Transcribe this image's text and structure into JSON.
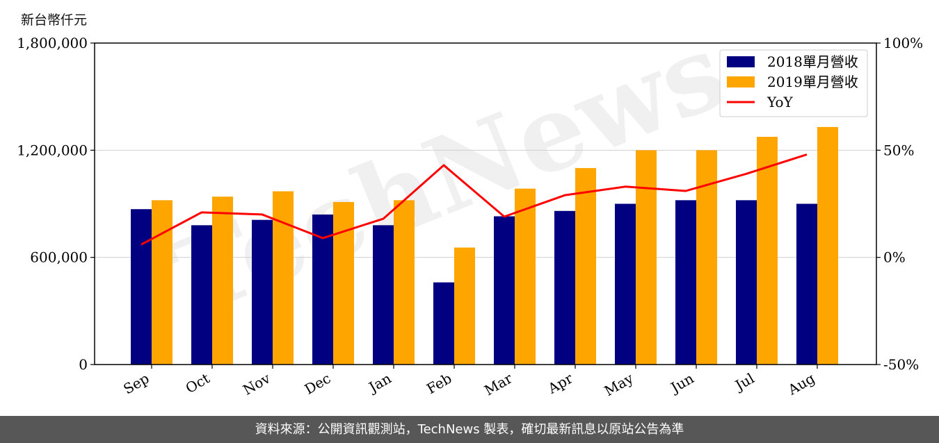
{
  "unit_label": "新台幣仟元",
  "footer": "資料來源：公開資訊觀測站，TechNews 製表，確切最新訊息以原站公告為準",
  "watermark": "TechNews",
  "chart_data": {
    "type": "bar",
    "categories": [
      "Sep",
      "Oct",
      "Nov",
      "Dec",
      "Jan",
      "Feb",
      "Mar",
      "Apr",
      "May",
      "Jun",
      "Jul",
      "Aug"
    ],
    "series": [
      {
        "name": "2018單月營收",
        "type": "bar",
        "axis": "left",
        "color": "#000080",
        "values": [
          870000,
          780000,
          810000,
          840000,
          780000,
          460000,
          830000,
          860000,
          900000,
          920000,
          920000,
          900000
        ]
      },
      {
        "name": "2019單月營收",
        "type": "bar",
        "axis": "left",
        "color": "#FFA500",
        "values": [
          920000,
          940000,
          970000,
          910000,
          920000,
          655000,
          985000,
          1100000,
          1200000,
          1200000,
          1275000,
          1330000
        ]
      },
      {
        "name": "YoY",
        "type": "line",
        "axis": "right",
        "color": "#FF0000",
        "values": [
          6,
          21,
          20,
          9,
          18,
          43,
          19,
          29,
          33,
          31,
          39,
          48
        ]
      }
    ],
    "left_axis": {
      "min": 0,
      "max": 1800000,
      "ticks": [
        0,
        600000,
        1200000,
        1800000
      ],
      "tick_labels": [
        "0",
        "600,000",
        "1,200,000",
        "1,800,000"
      ]
    },
    "right_axis": {
      "min": -50,
      "max": 100,
      "ticks": [
        -50,
        0,
        50,
        100
      ],
      "tick_labels": [
        "-50%",
        "0%",
        "50%",
        "100%"
      ]
    },
    "grid": "horizontal",
    "legend_position": "top-right"
  }
}
